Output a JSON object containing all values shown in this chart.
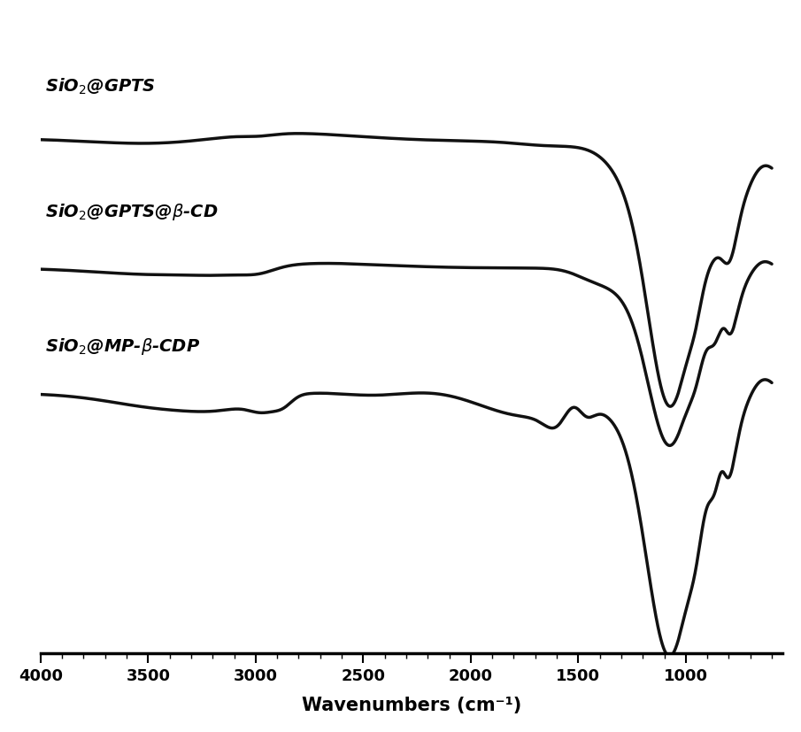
{
  "xlabel": "Wavenumbers (cm⁻¹)",
  "x_min": 600,
  "x_max": 4000,
  "xticks": [
    4000,
    3500,
    3000,
    2500,
    2000,
    1500,
    1000
  ],
  "line_color": "#111111",
  "line_width": 2.5,
  "background_color": "#ffffff",
  "offsets": [
    1.3,
    0.65,
    0.0
  ],
  "label_fontsize": 14,
  "xlabel_fontsize": 15,
  "tick_fontsize": 13
}
